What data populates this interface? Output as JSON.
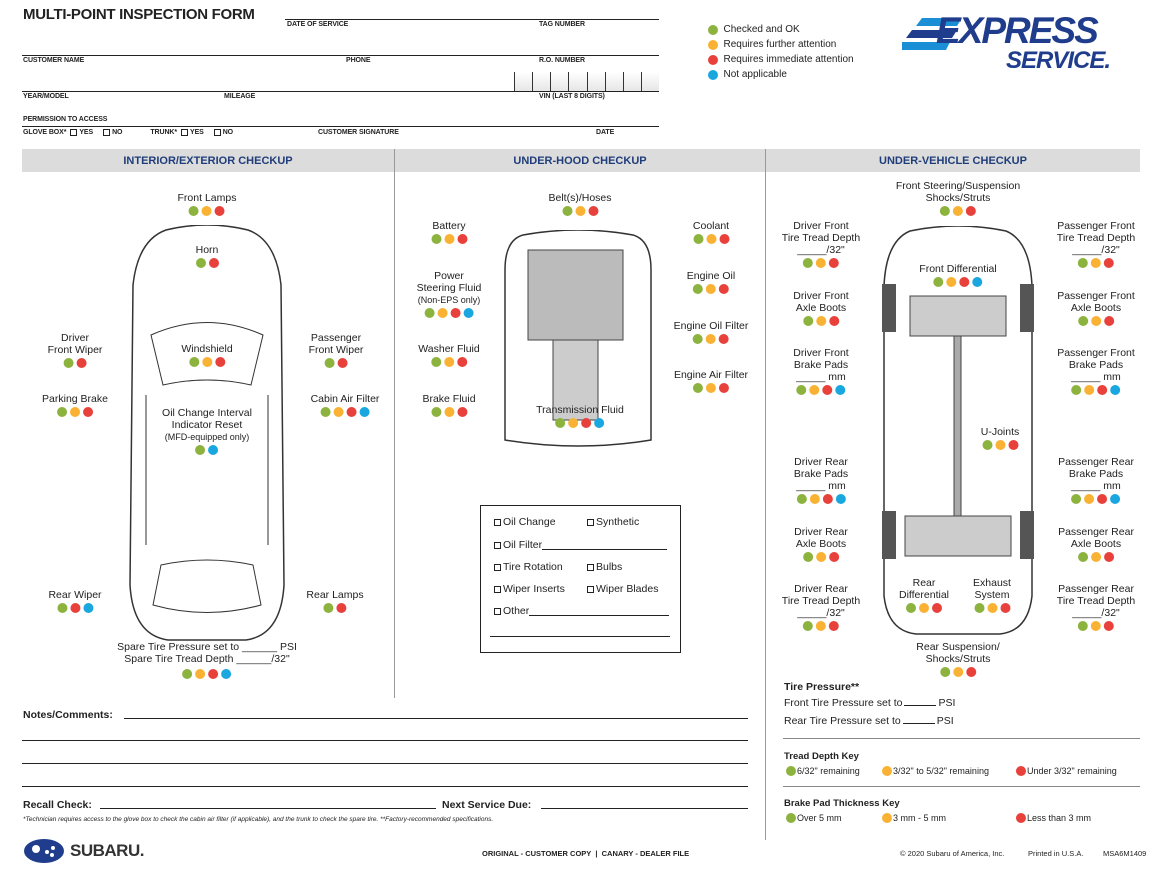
{
  "header": {
    "title": "MULTI-POINT INSPECTION FORM",
    "date_of_service": "DATE OF SERVICE",
    "tag_number": "TAG NUMBER",
    "customer_name": "CUSTOMER NAME",
    "phone": "PHONE",
    "ro_number": "R.O. NUMBER",
    "year_model": "YEAR/MODEL",
    "mileage": "MILEAGE",
    "vin": "VIN (LAST 8 DIGITS)",
    "permission": "PERMISSION TO ACCESS",
    "glove_box": "GLOVE BOX*",
    "yes": "YES",
    "no": "NO",
    "trunk": "TRUNK*",
    "customer_signature": "CUSTOMER SIGNATURE",
    "date": "DATE"
  },
  "legend": [
    {
      "label": "Checked and OK",
      "color": "#8cb33e"
    },
    {
      "label": "Requires further attention",
      "color": "#f9b233"
    },
    {
      "label": "Requires immediate attention",
      "color": "#e8413c"
    },
    {
      "label": "Not applicable",
      "color": "#1aa7e0"
    }
  ],
  "logo": {
    "express": "EXPRESS",
    "service": "SERVICE."
  },
  "colors": {
    "g": "#8cb33e",
    "y": "#f9b233",
    "r": "#e8413c",
    "b": "#1aa7e0",
    "section_header_text": "#1f3d7a"
  },
  "sections": {
    "interior": "INTERIOR/EXTERIOR CHECKUP",
    "underhood": "UNDER-HOOD CHECKUP",
    "undervehicle": "UNDER-VEHICLE CHECKUP"
  },
  "items": [
    {
      "lines": [
        "Front Lamps"
      ],
      "dots": "gyr"
    },
    {
      "lines": [
        "Horn"
      ],
      "dots": "gr"
    },
    {
      "lines": [
        "Driver",
        "Front Wiper"
      ],
      "dots": "gr"
    },
    {
      "lines": [
        "Windshield"
      ],
      "dots": "gyr"
    },
    {
      "lines": [
        "Passenger",
        "Front Wiper"
      ],
      "dots": "gr"
    },
    {
      "lines": [
        "Parking Brake"
      ],
      "dots": "gyr"
    },
    {
      "lines": [
        "Oil Change Interval",
        "Indicator Reset",
        "(MFD-equipped only)"
      ],
      "dots": "gb"
    },
    {
      "lines": [
        "Cabin Air Filter"
      ],
      "dots": "gyrb"
    },
    {
      "lines": [
        "Rear Wiper"
      ],
      "dots": "grb"
    },
    {
      "lines": [
        "Rear Lamps"
      ],
      "dots": "gr"
    },
    {
      "lines": [
        "Spare Tire Pressure set to ______ PSI",
        "Spare Tire Tread Depth ______/32\""
      ],
      "dots": "gyrb"
    },
    {
      "lines": [
        "Belt(s)/Hoses"
      ],
      "dots": "gyr"
    },
    {
      "lines": [
        "Battery"
      ],
      "dots": "gyr"
    },
    {
      "lines": [
        "Coolant"
      ],
      "dots": "gyr"
    },
    {
      "lines": [
        "Power",
        "Steering Fluid",
        "(Non-EPS only)"
      ],
      "dots": "gyrb"
    },
    {
      "lines": [
        "Engine Oil"
      ],
      "dots": "gyr"
    },
    {
      "lines": [
        "Engine Oil Filter"
      ],
      "dots": "gyr"
    },
    {
      "lines": [
        "Washer Fluid"
      ],
      "dots": "gyr"
    },
    {
      "lines": [
        "Engine Air Filter"
      ],
      "dots": "gyr"
    },
    {
      "lines": [
        "Brake Fluid"
      ],
      "dots": "gyr"
    },
    {
      "lines": [
        "Transmission Fluid"
      ],
      "dots": "gyrb"
    },
    {
      "lines": [
        "Front Steering/Suspension",
        "Shocks/Struts"
      ],
      "dots": "gyr"
    },
    {
      "lines": [
        "Driver Front",
        "Tire Tread Depth",
        "_____/32\""
      ],
      "dots": "gyr"
    },
    {
      "lines": [
        "Passenger Front",
        "Tire Tread Depth",
        "_____/32\""
      ],
      "dots": "gyr"
    },
    {
      "lines": [
        "Front Differential"
      ],
      "dots": "gyrb"
    },
    {
      "lines": [
        "Driver Front",
        "Axle Boots"
      ],
      "dots": "gyr"
    },
    {
      "lines": [
        "Passenger Front",
        "Axle Boots"
      ],
      "dots": "gyr"
    },
    {
      "lines": [
        "Driver Front",
        "Brake Pads",
        "_____ mm"
      ],
      "dots": "gyrb"
    },
    {
      "lines": [
        "Passenger Front",
        "Brake Pads",
        "_____ mm"
      ],
      "dots": "gyrb"
    },
    {
      "lines": [
        "U-Joints"
      ],
      "dots": "gyr"
    },
    {
      "lines": [
        "Driver Rear",
        "Brake Pads",
        "_____ mm"
      ],
      "dots": "gyrb"
    },
    {
      "lines": [
        "Passenger Rear",
        "Brake Pads",
        "_____ mm"
      ],
      "dots": "gyrb"
    },
    {
      "lines": [
        "Driver Rear",
        "Axle Boots"
      ],
      "dots": "gyr"
    },
    {
      "lines": [
        "Passenger Rear",
        "Axle Boots"
      ],
      "dots": "gyr"
    },
    {
      "lines": [
        "Rear",
        "Differential"
      ],
      "dots": "gyr"
    },
    {
      "lines": [
        "Exhaust",
        "System"
      ],
      "dots": "gyr"
    },
    {
      "lines": [
        "Driver Rear",
        "Tire Tread Depth",
        "_____/32\""
      ],
      "dots": "gyr"
    },
    {
      "lines": [
        "Passenger Rear",
        "Tire Tread Depth",
        "_____/32\""
      ],
      "dots": "gyr"
    },
    {
      "lines": [
        "Rear Suspension/",
        "Shocks/Struts"
      ],
      "dots": "gyr"
    }
  ],
  "service": {
    "oil_change": "Oil Change",
    "synthetic": "Synthetic",
    "oil_filter": "Oil Filter",
    "tire_rotation": "Tire Rotation",
    "bulbs": "Bulbs",
    "wiper_inserts": "Wiper Inserts",
    "wiper_blades": "Wiper Blades",
    "other": "Other"
  },
  "tire_pressure": {
    "title": "Tire Pressure**",
    "front": "Front Tire Pressure set to",
    "rear": "Rear Tire Pressure set to",
    "unit": "PSI"
  },
  "tread_key": {
    "title": "Tread Depth Key",
    "g": "6/32\" remaining",
    "y": "3/32\" to 5/32\" remaining",
    "r": "Under 3/32\" remaining"
  },
  "pad_key": {
    "title": "Brake Pad Thickness Key",
    "g": "Over 5 mm",
    "y": "3 mm - 5 mm",
    "r": "Less than 3 mm"
  },
  "notes": {
    "comments": "Notes/Comments:",
    "recall": "Recall Check:",
    "next_service": "Next Service Due:",
    "footnote": "*Technician requires access to the glove box to check the cabin air filter (if applicable), and the trunk to check the spare tire. **Factory-recommended specifications."
  },
  "footer": {
    "brand": "SUBARU.",
    "copies": "ORIGINAL - CUSTOMER COPY  |  CANARY - DEALER FILE",
    "copyright": "© 2020 Subaru of America, Inc.",
    "printed": "Printed in U.S.A.",
    "code": "MSA6M1409"
  }
}
